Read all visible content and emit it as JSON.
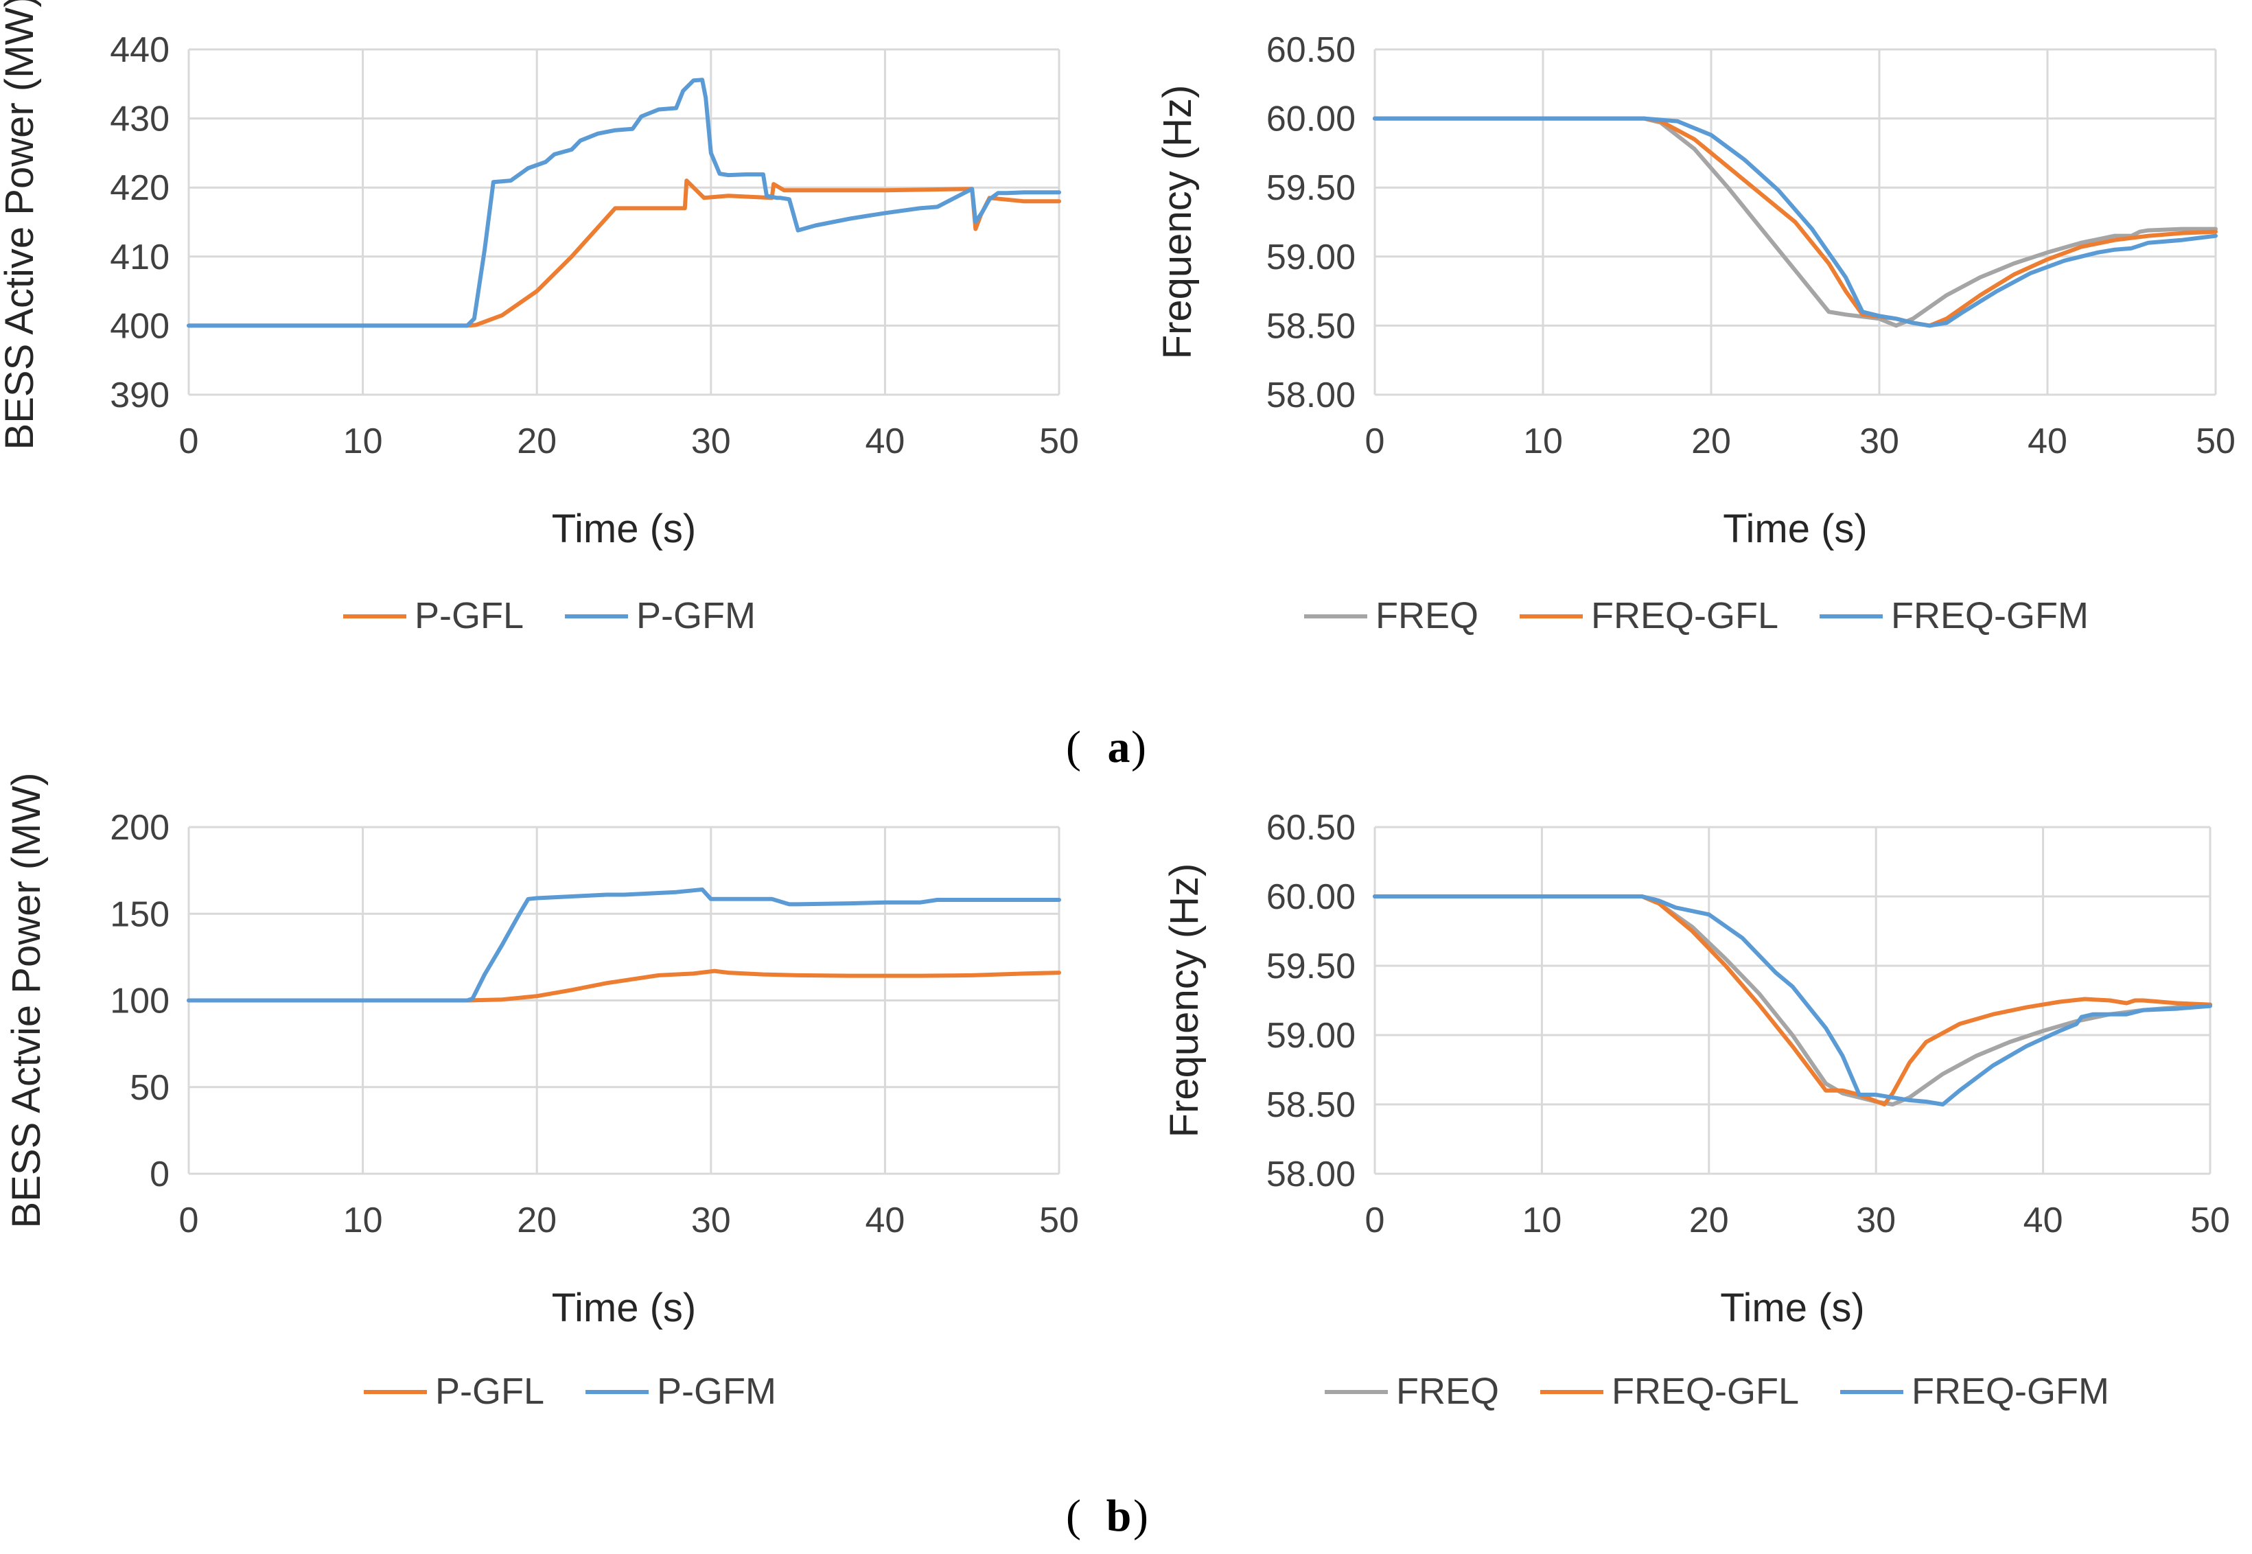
{
  "colors": {
    "P-GFL": "#ED7D31",
    "P-GFM": "#5B9BD5",
    "FREQ": "#A5A5A5",
    "FREQ-GFL": "#ED7D31",
    "FREQ-GFM": "#5B9BD5",
    "grid": "#D9D9D9"
  },
  "captions": {
    "a": "a",
    "b": "b"
  },
  "chart_data": [
    {
      "id": "a-power",
      "type": "line",
      "xlabel": "Time (s)",
      "ylabel": "BESS Active Power (MW)",
      "xlim": [
        0,
        50
      ],
      "ylim": [
        390,
        440
      ],
      "xticks": [
        "0",
        "10",
        "20",
        "30",
        "40",
        "50"
      ],
      "yticks": [
        "390",
        "400",
        "410",
        "420",
        "430",
        "440"
      ],
      "legend_position": "bottom",
      "series": [
        {
          "name": "P-GFL",
          "x": [
            0,
            16,
            16.5,
            18,
            20,
            22,
            24.5,
            28.5,
            28.6,
            29.6,
            31,
            33.5,
            33.6,
            34.2,
            36,
            40,
            45,
            45.2,
            45.5,
            46,
            48,
            50
          ],
          "y": [
            400,
            400,
            400.1,
            401.5,
            405,
            410,
            417,
            417,
            421,
            418.5,
            418.8,
            418.5,
            420.5,
            419.6,
            419.6,
            419.6,
            419.8,
            414,
            416,
            418.5,
            418,
            418
          ]
        },
        {
          "name": "P-GFM",
          "x": [
            0,
            16,
            16.4,
            17,
            17.5,
            18.5,
            19.5,
            20.5,
            21,
            22,
            22.5,
            23.5,
            24.5,
            25.5,
            26,
            27,
            28,
            28.4,
            29,
            29.5,
            29.7,
            30,
            30.5,
            31,
            32,
            33,
            33.2,
            33.8,
            34,
            34.5,
            35,
            36,
            38,
            40,
            42,
            43,
            44,
            45,
            45.2,
            45.6,
            46,
            46.5,
            47,
            48,
            50
          ],
          "y": [
            400,
            400,
            401,
            411,
            420.8,
            421,
            422.8,
            423.7,
            424.8,
            425.5,
            426.8,
            427.8,
            428.3,
            428.5,
            430.3,
            431.3,
            431.5,
            434,
            435.5,
            435.6,
            433,
            425,
            422,
            421.8,
            421.9,
            421.9,
            418.8,
            418.5,
            418.5,
            418.3,
            413.8,
            414.5,
            415.5,
            416.3,
            417,
            417.2,
            418.5,
            419.8,
            415,
            416.5,
            418.3,
            419.2,
            419.2,
            419.3,
            419.3
          ]
        }
      ]
    },
    {
      "id": "a-freq",
      "type": "line",
      "xlabel": "Time (s)",
      "ylabel": "Frequency (Hz)",
      "xlim": [
        0,
        50
      ],
      "ylim": [
        58.0,
        60.5
      ],
      "xticks": [
        "0",
        "10",
        "20",
        "30",
        "40",
        "50"
      ],
      "yticks": [
        "58.00",
        "58.50",
        "59.00",
        "59.50",
        "60.00",
        "60.50"
      ],
      "legend_position": "bottom",
      "series": [
        {
          "name": "FREQ",
          "x": [
            0,
            16,
            17,
            19,
            21,
            23,
            25,
            27,
            28,
            30,
            31,
            32,
            34,
            36,
            38,
            40,
            42,
            44,
            45,
            45.5,
            46,
            48,
            50
          ],
          "y": [
            60,
            60,
            59.97,
            59.78,
            59.5,
            59.2,
            58.9,
            58.6,
            58.58,
            58.55,
            58.5,
            58.55,
            58.72,
            58.85,
            58.95,
            59.03,
            59.1,
            59.15,
            59.15,
            59.18,
            59.19,
            59.2,
            59.2
          ]
        },
        {
          "name": "FREQ-GFL",
          "x": [
            0,
            16,
            17,
            19,
            21,
            23,
            25,
            27,
            28,
            29,
            31,
            32,
            33,
            34,
            36,
            38,
            40,
            42,
            44,
            46,
            48,
            50
          ],
          "y": [
            60,
            60,
            59.98,
            59.85,
            59.65,
            59.45,
            59.25,
            58.95,
            58.75,
            58.58,
            58.55,
            58.52,
            58.5,
            58.55,
            58.72,
            58.87,
            58.98,
            59.07,
            59.12,
            59.15,
            59.17,
            59.18
          ]
        },
        {
          "name": "FREQ-GFM",
          "x": [
            0,
            16,
            17,
            18,
            20,
            22,
            24,
            26,
            28,
            29,
            30,
            31,
            32,
            33,
            34,
            35,
            37,
            39,
            41,
            43,
            44,
            45,
            45.5,
            46,
            48,
            50
          ],
          "y": [
            60,
            60,
            59.99,
            59.98,
            59.88,
            59.7,
            59.48,
            59.2,
            58.85,
            58.6,
            58.57,
            58.55,
            58.52,
            58.5,
            58.52,
            58.6,
            58.75,
            58.88,
            58.97,
            59.03,
            59.05,
            59.06,
            59.08,
            59.1,
            59.12,
            59.15
          ]
        }
      ]
    },
    {
      "id": "b-power",
      "type": "line",
      "xlabel": "Time (s)",
      "ylabel": "BESS Actvie Power (MW)",
      "xlim": [
        0,
        50
      ],
      "ylim": [
        0,
        200
      ],
      "xticks": [
        "0",
        "10",
        "20",
        "30",
        "40",
        "50"
      ],
      "yticks": [
        "0",
        "50",
        "100",
        "150",
        "200"
      ],
      "legend_position": "bottom",
      "series": [
        {
          "name": "P-GFL",
          "x": [
            0,
            16,
            18,
            20,
            22,
            24,
            27,
            29,
            30.2,
            31,
            33,
            35,
            38,
            40,
            42,
            45,
            48,
            50
          ],
          "y": [
            100,
            100,
            100.5,
            102.5,
            106,
            110,
            114.5,
            115.5,
            117,
            116,
            115,
            114.5,
            114.2,
            114.2,
            114.2,
            114.5,
            115.5,
            116
          ]
        },
        {
          "name": "P-GFM",
          "x": [
            0,
            16,
            16.3,
            17,
            18,
            19,
            19.5,
            20,
            22,
            24,
            25,
            26,
            27,
            28,
            29,
            29.5,
            30,
            32,
            33.5,
            34.5,
            35,
            38,
            40,
            41,
            42,
            43,
            45,
            48,
            50
          ],
          "y": [
            100,
            100,
            101,
            115,
            132,
            150,
            158.5,
            159,
            160,
            161,
            161,
            161.5,
            162,
            162.5,
            163.5,
            164,
            158.5,
            158.5,
            158.5,
            155.5,
            155.5,
            156,
            156.5,
            156.5,
            156.5,
            158,
            158,
            158,
            158
          ]
        }
      ]
    },
    {
      "id": "b-freq",
      "type": "line",
      "xlabel": "Time (s)",
      "ylabel": "Frequency (Hz)",
      "xlim": [
        0,
        50
      ],
      "ylim": [
        58.0,
        60.5
      ],
      "xticks": [
        "0",
        "10",
        "20",
        "30",
        "40",
        "50"
      ],
      "yticks": [
        "58.00",
        "58.50",
        "59.00",
        "59.50",
        "60.00",
        "60.50"
      ],
      "legend_position": "bottom",
      "series": [
        {
          "name": "FREQ",
          "x": [
            0,
            16,
            17,
            19,
            21,
            23,
            25,
            27,
            28,
            29,
            30,
            31,
            32,
            34,
            36,
            38,
            40,
            42,
            44,
            46,
            48,
            50
          ],
          "y": [
            60,
            60,
            59.95,
            59.78,
            59.55,
            59.3,
            59.0,
            58.65,
            58.58,
            58.55,
            58.52,
            58.5,
            58.55,
            58.72,
            58.85,
            58.95,
            59.03,
            59.1,
            59.15,
            59.18,
            59.2,
            59.22
          ]
        },
        {
          "name": "FREQ-GFL",
          "x": [
            0,
            16,
            17,
            19,
            21,
            23,
            25,
            27,
            28,
            29,
            30.5,
            31,
            32,
            33,
            35,
            37,
            39,
            41,
            42.5,
            44,
            45,
            45.5,
            46,
            48,
            50
          ],
          "y": [
            60,
            60,
            59.95,
            59.75,
            59.5,
            59.22,
            58.92,
            58.6,
            58.6,
            58.57,
            58.5,
            58.58,
            58.8,
            58.95,
            59.08,
            59.15,
            59.2,
            59.24,
            59.26,
            59.25,
            59.23,
            59.25,
            59.25,
            59.23,
            59.22
          ]
        },
        {
          "name": "FREQ-GFM",
          "x": [
            0,
            16,
            17,
            18,
            20,
            22,
            24,
            25,
            26,
            27,
            28,
            29,
            30,
            31,
            32,
            33,
            34,
            35,
            37,
            39,
            41,
            42,
            42.3,
            43,
            45,
            46,
            48,
            50
          ],
          "y": [
            60,
            60,
            59.97,
            59.92,
            59.87,
            59.7,
            59.45,
            59.35,
            59.2,
            59.05,
            58.85,
            58.57,
            58.57,
            58.55,
            58.53,
            58.52,
            58.5,
            58.6,
            58.78,
            58.92,
            59.03,
            59.08,
            59.13,
            59.15,
            59.15,
            59.18,
            59.19,
            59.21
          ]
        }
      ]
    }
  ]
}
